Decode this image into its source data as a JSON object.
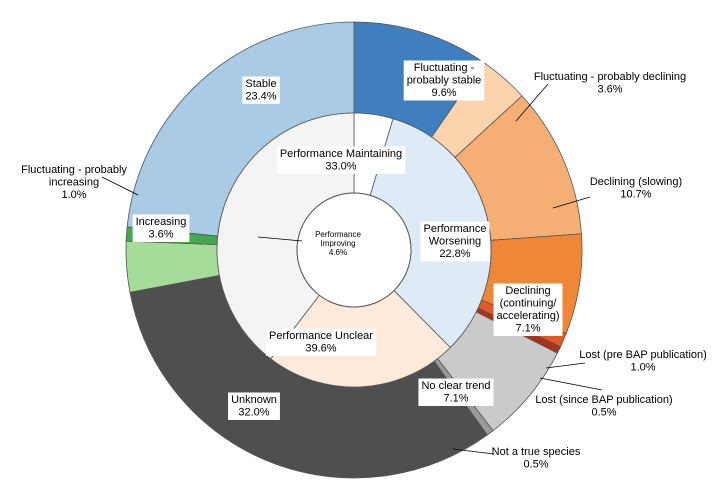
{
  "chart_data": {
    "type": "pie",
    "title": "",
    "start_angle_deg": 0,
    "inner_ring": {
      "name": "",
      "slices": [
        {
          "label": "Performance Improving",
          "value": 4.6,
          "value_text": "4.6%",
          "color": "#ffffff"
        },
        {
          "label": "Performance Maintaining",
          "value": 33.0,
          "value_text": "33.0%",
          "color": "#deebf7"
        },
        {
          "label": "Performance Worsening",
          "value": 22.8,
          "value_text": "22.8%",
          "color": "#fdeadb"
        },
        {
          "label": "Performance Unclear",
          "value": 39.6,
          "value_text": "39.6%",
          "color": "#f4f4f4"
        }
      ]
    },
    "outer_ring": {
      "name": "",
      "slices": [
        {
          "label": "Fluctuating - probably stable",
          "value": 9.6,
          "value_text": "9.6%",
          "color": "#3f7fc0",
          "group": "Performance Maintaining"
        },
        {
          "label": "Fluctuating - probably declining",
          "value": 3.6,
          "value_text": "3.6%",
          "color": "#fbd4ad",
          "group": "Performance Worsening"
        },
        {
          "label": "Declining (slowing)",
          "value": 10.7,
          "value_text": "10.7%",
          "color": "#f5ae74",
          "group": "Performance Worsening"
        },
        {
          "label": "Declining (continuing/ accelerating)",
          "value": 7.1,
          "value_text": "7.1%",
          "color": "#f08737",
          "group": "Performance Worsening"
        },
        {
          "label": "Lost (pre BAP publication)",
          "value": 1.0,
          "value_text": "1.0%",
          "color": "#e05a28",
          "group": "Performance Worsening"
        },
        {
          "label": "Lost (since BAP publication)",
          "value": 0.5,
          "value_text": "0.5%",
          "color": "#a93318",
          "group": "Performance Worsening"
        },
        {
          "label": "No clear trend",
          "value": 7.1,
          "value_text": "7.1%",
          "color": "#cacaca",
          "group": "Performance Unclear"
        },
        {
          "label": "Not a true species",
          "value": 0.5,
          "value_text": "0.5%",
          "color": "#9a9a9a",
          "group": "Performance Unclear"
        },
        {
          "label": "Unknown",
          "value": 32.0,
          "value_text": "32.0%",
          "color": "#4f4f4f",
          "group": "Performance Unclear"
        },
        {
          "label": "Increasing",
          "value": 3.6,
          "value_text": "3.6%",
          "color": "#a6dc9a",
          "group": "Performance Improving"
        },
        {
          "label": "Fluctuating - probably increasing",
          "value": 1.0,
          "value_text": "1.0%",
          "color": "#45a84d",
          "group": "Performance Improving"
        },
        {
          "label": "Stable",
          "value": 23.4,
          "value_text": "23.4%",
          "color": "#a9cbe6",
          "group": "Performance Maintaining"
        }
      ]
    },
    "legend": "none"
  }
}
